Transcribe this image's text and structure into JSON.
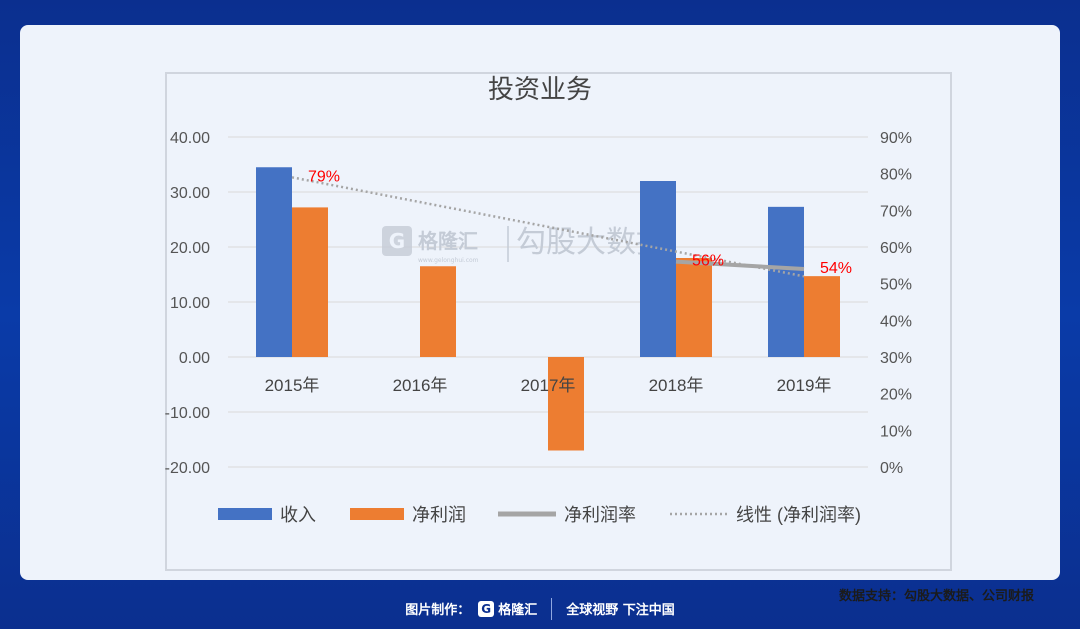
{
  "chart_data": {
    "type": "bar",
    "title": "投资业务",
    "categories": [
      "2015年",
      "2016年",
      "2017年",
      "2018年",
      "2019年"
    ],
    "series": [
      {
        "name": "收入",
        "kind": "bar",
        "axis": "left",
        "color": "#4472c4",
        "values": [
          34.5,
          null,
          null,
          32.0,
          27.3
        ]
      },
      {
        "name": "净利润",
        "kind": "bar",
        "axis": "left",
        "color": "#ed7d31",
        "values": [
          27.2,
          16.5,
          -17.0,
          18.0,
          14.7
        ]
      },
      {
        "name": "净利润率",
        "kind": "line",
        "axis": "right",
        "color": "#a5a5a5",
        "values": [
          null,
          null,
          null,
          0.56,
          0.54
        ]
      },
      {
        "name": "线性 (净利润率)",
        "kind": "trendline",
        "axis": "right",
        "color": "#a5a5a5",
        "values": [
          0.79,
          null,
          null,
          null,
          0.52
        ]
      }
    ],
    "data_labels": [
      {
        "category": "2015年",
        "text": "79%",
        "value": 0.79
      },
      {
        "category": "2018年",
        "text": "56%",
        "value": 0.56
      },
      {
        "category": "2019年",
        "text": "54%",
        "value": 0.54
      }
    ],
    "left_axis": {
      "ylim": [
        -20,
        40
      ],
      "ticks": [
        "40.00",
        "30.00",
        "20.00",
        "10.00",
        "0.00",
        "-10.00",
        "-20.00"
      ]
    },
    "right_axis": {
      "ylim": [
        0,
        0.9
      ],
      "ticks": [
        "90%",
        "80%",
        "70%",
        "60%",
        "50%",
        "40%",
        "30%",
        "20%",
        "10%",
        "0%"
      ]
    },
    "grid": true,
    "legend_position": "bottom",
    "label_color": "#ff0000"
  },
  "watermark": {
    "brand": "格隆汇",
    "brand_sub": "www.gelonghui.com",
    "text": "勾股大数据"
  },
  "source_text": "数据支持：勾股大数据、公司财报",
  "footer": {
    "made_by": "图片制作：",
    "brand": "格隆汇",
    "slogan": "全球视野 下注中国"
  }
}
